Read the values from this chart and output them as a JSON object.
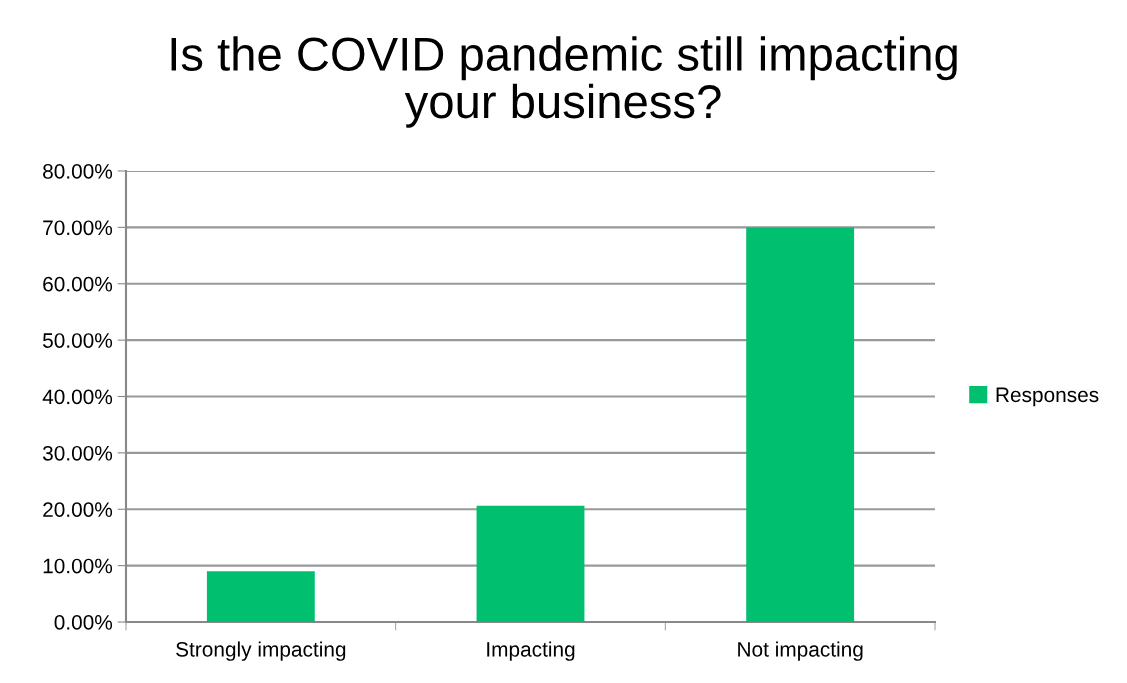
{
  "chart_data": {
    "type": "bar",
    "title": "Is the COVID pandemic still impacting\nyour business?",
    "categories": [
      "Strongly impacting",
      "Impacting",
      "Not impacting"
    ],
    "series": [
      {
        "name": "Responses",
        "color": "#00bf6f",
        "values": [
          9.0,
          20.6,
          70.0
        ]
      }
    ],
    "ylim": [
      0,
      80
    ],
    "yticks": [
      {
        "value": 0,
        "label": "0.00%"
      },
      {
        "value": 10,
        "label": "10.00%"
      },
      {
        "value": 20,
        "label": "20.00%"
      },
      {
        "value": 30,
        "label": "30.00%"
      },
      {
        "value": 40,
        "label": "40.00%"
      },
      {
        "value": 50,
        "label": "50.00%"
      },
      {
        "value": 60,
        "label": "60.00%"
      },
      {
        "value": 70,
        "label": "70.00%"
      },
      {
        "value": 80,
        "label": "80.00%"
      }
    ],
    "grid": "y",
    "legend": "right"
  }
}
